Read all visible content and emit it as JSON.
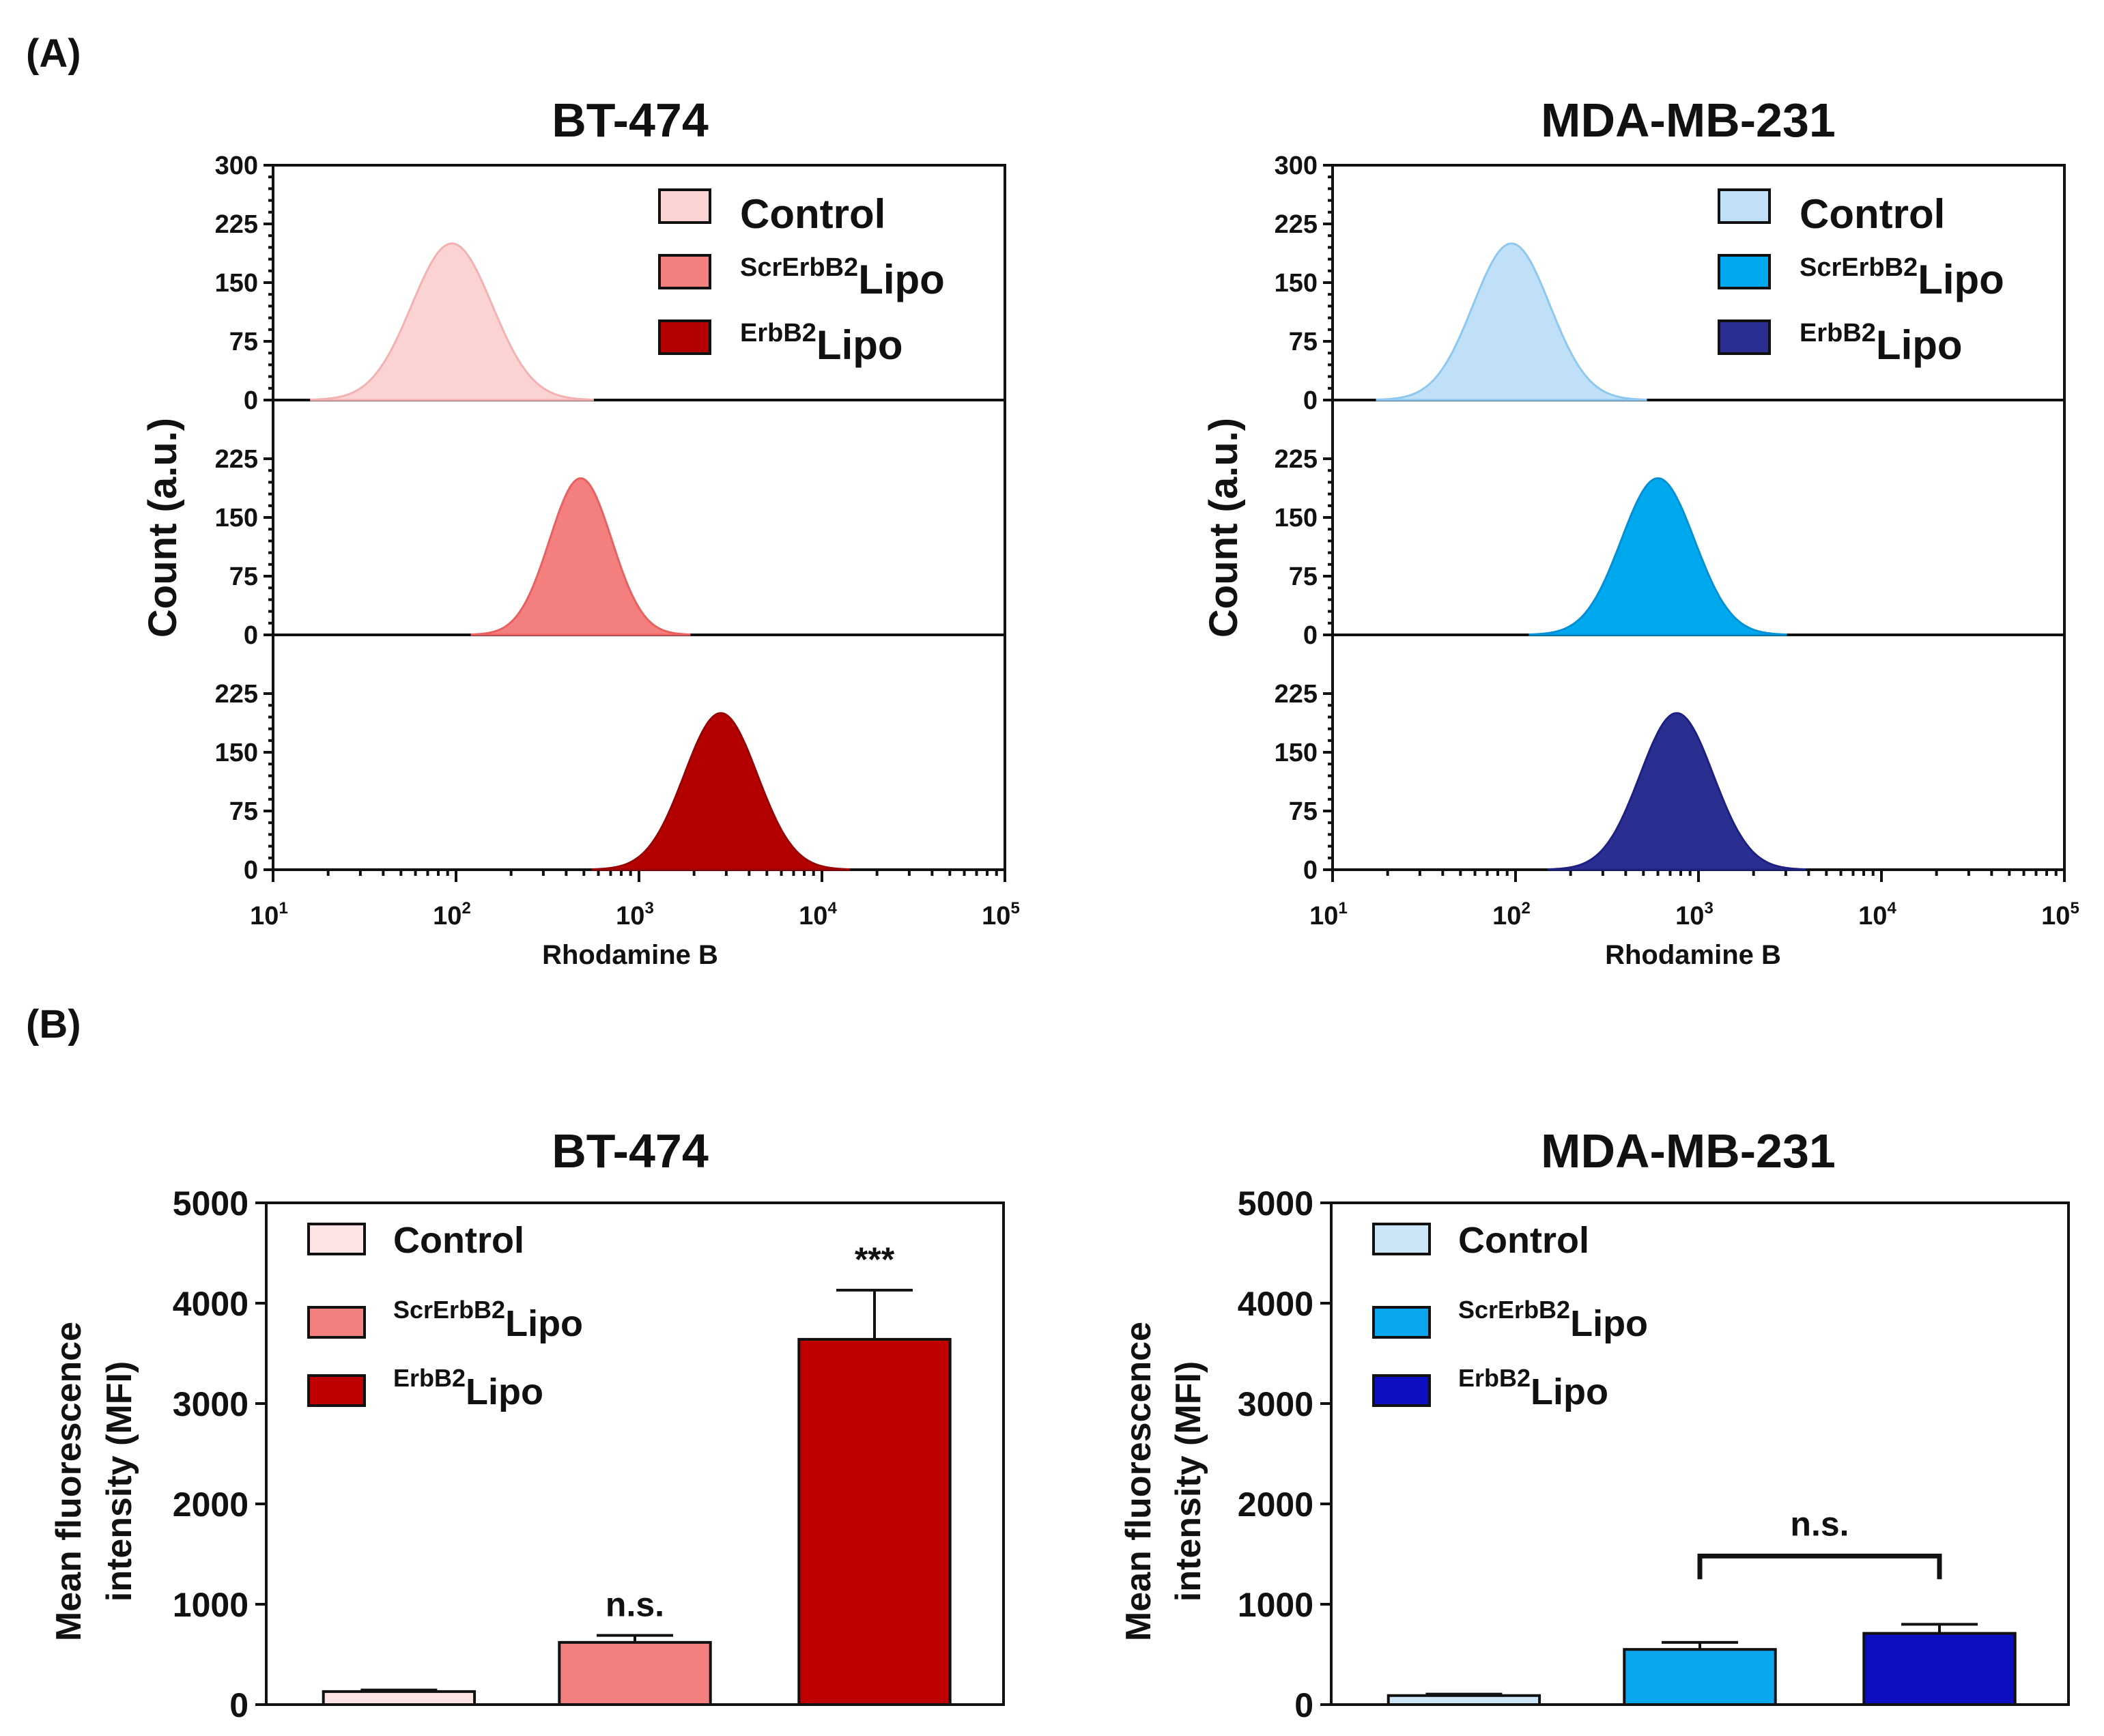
{
  "panel_labels": [
    "(A)",
    "(B)"
  ],
  "chart_data": [
    {
      "type": "area",
      "panel": "A",
      "title": "BT-474",
      "xlabel": "Rhodamine B",
      "ylabel": "Count (a.u.)",
      "x_scale": "log",
      "xlim": [
        10,
        100000
      ],
      "x_ticks": [
        {
          "base": "10",
          "exp": "1"
        },
        {
          "base": "10",
          "exp": "2"
        },
        {
          "base": "10",
          "exp": "3"
        },
        {
          "base": "10",
          "exp": "4"
        },
        {
          "base": "10",
          "exp": "5"
        }
      ],
      "y_ticks_top": [
        "300",
        "225",
        "150",
        "75",
        "0"
      ],
      "y_ticks_lower": [
        "225",
        "150",
        "75",
        "0"
      ],
      "ylim": [
        0,
        300
      ],
      "legend": {
        "position": "top-right"
      },
      "series": [
        {
          "name": "Control",
          "sup": "",
          "label": "Control",
          "color": "#fbd3d3",
          "stroke": "#f3b2b2",
          "peak_x": 95,
          "peak_count": 200,
          "log_sigma": 0.22
        },
        {
          "name": "ScrErbB2Lipo",
          "sup": "ScrErbB2",
          "label": "Lipo",
          "color": "#f47f7f",
          "stroke": "#e8605f",
          "peak_x": 480,
          "peak_count": 200,
          "log_sigma": 0.17
        },
        {
          "name": "ErbB2Lipo",
          "sup": "ErbB2",
          "label": "Lipo",
          "color": "#b30000",
          "stroke": "#990000",
          "peak_x": 2800,
          "peak_count": 200,
          "log_sigma": 0.2
        }
      ]
    },
    {
      "type": "area",
      "panel": "A",
      "title": "MDA-MB-231",
      "xlabel": "Rhodamine B",
      "ylabel": "Count (a.u.)",
      "x_scale": "log",
      "xlim": [
        10,
        100000
      ],
      "x_ticks": [
        {
          "base": "10",
          "exp": "1"
        },
        {
          "base": "10",
          "exp": "2"
        },
        {
          "base": "10",
          "exp": "3"
        },
        {
          "base": "10",
          "exp": "4"
        },
        {
          "base": "10",
          "exp": "5"
        }
      ],
      "y_ticks_top": [
        "300",
        "225",
        "150",
        "75",
        "0"
      ],
      "y_ticks_lower": [
        "225",
        "150",
        "75",
        "0"
      ],
      "ylim": [
        0,
        300
      ],
      "legend": {
        "position": "top-right"
      },
      "series": [
        {
          "name": "Control",
          "sup": "",
          "label": "Control",
          "color": "#bfe0f7",
          "stroke": "#8fc8ef",
          "peak_x": 95,
          "peak_count": 200,
          "log_sigma": 0.21
        },
        {
          "name": "ScrErbB2Lipo",
          "sup": "ScrErbB2",
          "label": "Lipo",
          "color": "#00a8ee",
          "stroke": "#0090d6",
          "peak_x": 600,
          "peak_count": 200,
          "log_sigma": 0.2
        },
        {
          "name": "ErbB2Lipo",
          "sup": "ErbB2",
          "label": "Lipo",
          "color": "#2a2e91",
          "stroke": "#1c2080",
          "peak_x": 760,
          "peak_count": 200,
          "log_sigma": 0.2
        }
      ]
    },
    {
      "type": "bar",
      "panel": "B",
      "title": "BT-474",
      "ylabel": "Mean fluorescence intensity (MFI)",
      "ylabel_lines": [
        "Mean fluorescence",
        "intensity (MFI)"
      ],
      "y_ticks": [
        "5000",
        "4000",
        "3000",
        "2000",
        "1000",
        "0"
      ],
      "ylim": [
        0,
        5000
      ],
      "legend": {
        "position": "top-left"
      },
      "categories": [
        "Control",
        "ScrErbB2Lipo",
        "ErbB2Lipo"
      ],
      "values": [
        130,
        620,
        3640
      ],
      "errors": [
        15,
        70,
        490
      ],
      "colors": [
        "#fde4e4",
        "#f47f7f",
        "#c00000"
      ],
      "legend_items": [
        {
          "sup": "",
          "label": "Control"
        },
        {
          "sup": "ScrErbB2",
          "label": "Lipo"
        },
        {
          "sup": "ErbB2",
          "label": "Lipo"
        }
      ],
      "annotations": [
        {
          "bar": 1,
          "text": "n.s."
        },
        {
          "bar": 2,
          "text": "***"
        }
      ]
    },
    {
      "type": "bar",
      "panel": "B",
      "title": "MDA-MB-231",
      "ylabel": "Mean fluorescence intensity (MFI)",
      "ylabel_lines": [
        "Mean fluorescence",
        "intensity (MFI)"
      ],
      "y_ticks": [
        "5000",
        "4000",
        "3000",
        "2000",
        "1000",
        "0"
      ],
      "ylim": [
        0,
        5000
      ],
      "legend": {
        "position": "top-left"
      },
      "categories": [
        "Control",
        "ScrErbB2Lipo",
        "ErbB2Lipo"
      ],
      "values": [
        90,
        550,
        710
      ],
      "errors": [
        15,
        70,
        90
      ],
      "colors": [
        "#cde6f7",
        "#0aa6ee",
        "#0c0ec0"
      ],
      "legend_items": [
        {
          "sup": "",
          "label": "Control"
        },
        {
          "sup": "ScrErbB2",
          "label": "Lipo"
        },
        {
          "sup": "ErbB2",
          "label": "Lipo"
        }
      ],
      "annotations": [
        {
          "bracket": [
            1,
            2
          ],
          "text": "n.s."
        }
      ]
    }
  ]
}
